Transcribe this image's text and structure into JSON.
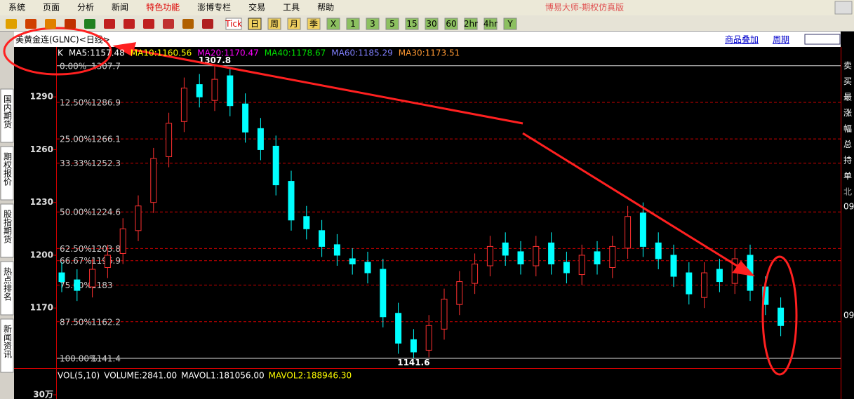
{
  "menu": [
    "系统",
    "页面",
    "分析",
    "新闻",
    "特色功能",
    "澎博专栏",
    "交易",
    "工具",
    "帮助"
  ],
  "app_title": "博易大师-期权仿真版",
  "toolbar": [
    "Tick",
    "日",
    "周",
    "月",
    "季",
    "X",
    "1",
    "3",
    "5",
    "15",
    "30",
    "60",
    "2hr",
    "4hr",
    "Y"
  ],
  "side_tabs": [
    "国内期货",
    "期权报价",
    "股指期货",
    "热点排名",
    "新闻资讯"
  ],
  "header": {
    "title": "美黄金连(GLNC)<日线>",
    "links": [
      "商品叠加",
      "周期"
    ]
  },
  "indicator": [
    {
      "text": "K",
      "color": "#ffffff"
    },
    {
      "text": "MA5:1157.48",
      "color": "#ffffff"
    },
    {
      "text": "MA10:1160.56",
      "color": "#ffff00"
    },
    {
      "text": "MA20:1170.47",
      "color": "#ff00ff"
    },
    {
      "text": "MA40:1178.67",
      "color": "#00e000"
    },
    {
      "text": "MA60:1185.29",
      "color": "#8080ff"
    },
    {
      "text": "MA30:1173.51",
      "color": "#ff9933"
    }
  ],
  "right_panel": [
    "卖",
    "买",
    "最",
    "涨",
    "幅",
    "总",
    "持",
    "单",
    "北"
  ],
  "right_axis": [
    "09",
    "09"
  ],
  "chart_data": {
    "type": "candlestick",
    "ylim": [
      1137.8,
      1309.2
    ],
    "yticks": [
      1170,
      1200,
      1230,
      1260,
      1290
    ],
    "up_color": "#ff3030",
    "down_color": "#00ffff",
    "fib_levels": [
      {
        "pct": "0.00%",
        "value": 1307.7
      },
      {
        "pct": "12.50%",
        "value": 1286.9
      },
      {
        "pct": "25.00%",
        "value": 1266.1
      },
      {
        "pct": "33.33%",
        "value": 1252.3
      },
      {
        "pct": "50.00%",
        "value": 1224.6
      },
      {
        "pct": "62.50%",
        "value": 1203.8
      },
      {
        "pct": "66.67%",
        "value": 1196.9
      },
      {
        "pct": "75.00%",
        "value": 1183.0
      },
      {
        "pct": "87.50%",
        "value": 1162.2
      },
      {
        "pct": "100.00%",
        "value": 1141.4
      }
    ],
    "open": [
      1190,
      1186,
      1182,
      1193,
      1201,
      1214,
      1230,
      1256,
      1276,
      1297,
      1288,
      1302,
      1286,
      1272,
      1262,
      1242,
      1222,
      1214,
      1206,
      1198,
      1196,
      1192,
      1167,
      1152,
      1146,
      1158,
      1172,
      1184,
      1194,
      1207,
      1202,
      1194,
      1207,
      1196,
      1189,
      1202,
      1193,
      1204,
      1224,
      1207,
      1200,
      1190,
      1176,
      1192,
      1184,
      1200,
      1182,
      1170
    ],
    "high": [
      1196,
      1192,
      1198,
      1206,
      1221,
      1234,
      1261,
      1281,
      1301,
      1303,
      1307.8,
      1306,
      1292,
      1278,
      1268,
      1248,
      1228,
      1220,
      1212,
      1204,
      1202,
      1198,
      1173,
      1158,
      1166,
      1181,
      1191,
      1201,
      1211,
      1213,
      1208,
      1211,
      1213,
      1202,
      1206,
      1208,
      1211,
      1228,
      1230,
      1213,
      1206,
      1196,
      1196,
      1198,
      1204,
      1206,
      1188,
      1176
    ],
    "low": [
      1179,
      1174,
      1176,
      1187,
      1195,
      1208,
      1224,
      1250,
      1270,
      1284,
      1282,
      1279,
      1264,
      1254,
      1234,
      1214,
      1209,
      1199,
      1194,
      1189,
      1184,
      1159,
      1144,
      1141.6,
      1142,
      1152,
      1166,
      1178,
      1188,
      1194,
      1189,
      1188,
      1189,
      1184,
      1183,
      1189,
      1187,
      1198,
      1199,
      1192,
      1182,
      1172,
      1170,
      1179,
      1178,
      1174,
      1166,
      1154
    ],
    "close": [
      1185,
      1180,
      1192,
      1200,
      1215,
      1228,
      1255,
      1275,
      1295,
      1290,
      1300,
      1285,
      1270,
      1260,
      1240,
      1220,
      1215,
      1205,
      1200,
      1195,
      1190,
      1165,
      1150,
      1145,
      1160,
      1175,
      1185,
      1195,
      1205,
      1200,
      1195,
      1205,
      1195,
      1190,
      1200,
      1195,
      1205,
      1222,
      1205,
      1198,
      1188,
      1178,
      1190,
      1185,
      1198,
      1180,
      1172,
      1160
    ],
    "annotations": [
      {
        "text": "1307.8",
        "index": 10
      },
      {
        "text": "1141.6",
        "index": 23
      }
    ]
  },
  "volume": {
    "items": [
      "VOL(5,10)",
      "VOLUME:2841.00",
      "MAVOL1:181056.00",
      "MAVOL2:188946.30"
    ],
    "yticks": [
      {
        "value": 300000,
        "label": "30万"
      }
    ]
  }
}
